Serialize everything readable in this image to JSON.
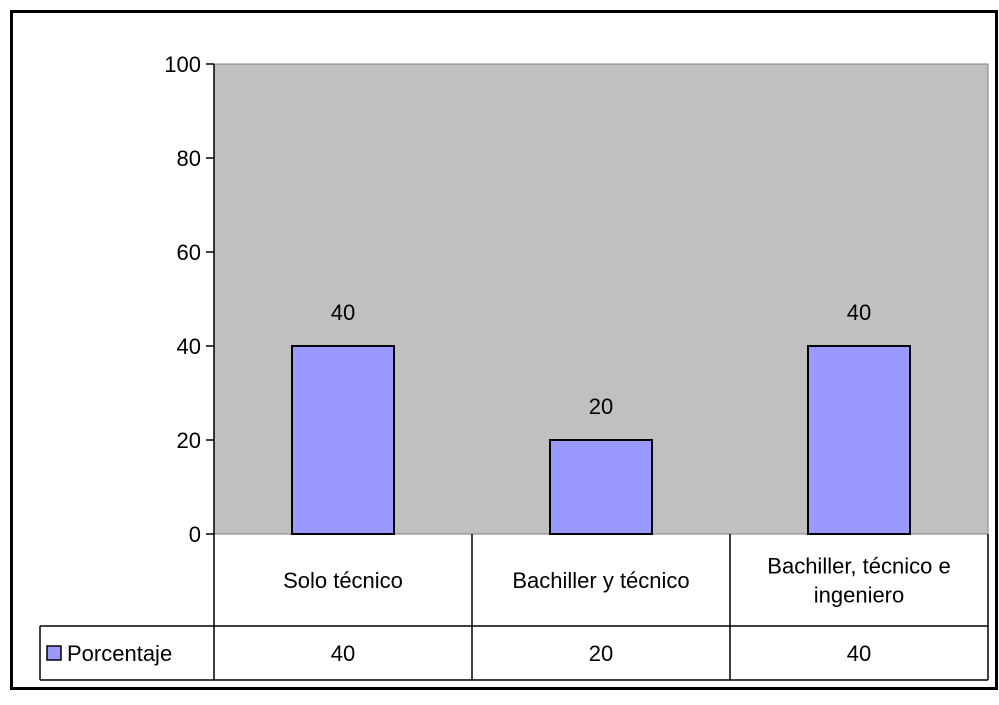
{
  "chart_data": {
    "type": "bar",
    "categories": [
      "Solo técnico",
      "Bachiller y técnico",
      "Bachiller, técnico e ingeniero"
    ],
    "category_lines": [
      [
        "Solo técnico"
      ],
      [
        "Bachiller y técnico"
      ],
      [
        "Bachiller, técnico e",
        "ingeniero"
      ]
    ],
    "series": [
      {
        "name": "Porcentaje",
        "values": [
          40,
          20,
          40
        ]
      }
    ],
    "data_labels": [
      "40",
      "20",
      "40"
    ],
    "table_values": [
      "40",
      "20",
      "40"
    ],
    "ylim": [
      0,
      100
    ],
    "yticks": [
      "0",
      "20",
      "40",
      "60",
      "80",
      "100"
    ],
    "ytick_values": [
      0,
      20,
      40,
      60,
      80,
      100
    ],
    "grid": false,
    "legend": "data-table-left",
    "colors": {
      "plot_background": "#c0c0c0",
      "bar_fill": "#9999ff",
      "bar_stroke": "#000000"
    },
    "legend_label": "Porcentaje"
  }
}
